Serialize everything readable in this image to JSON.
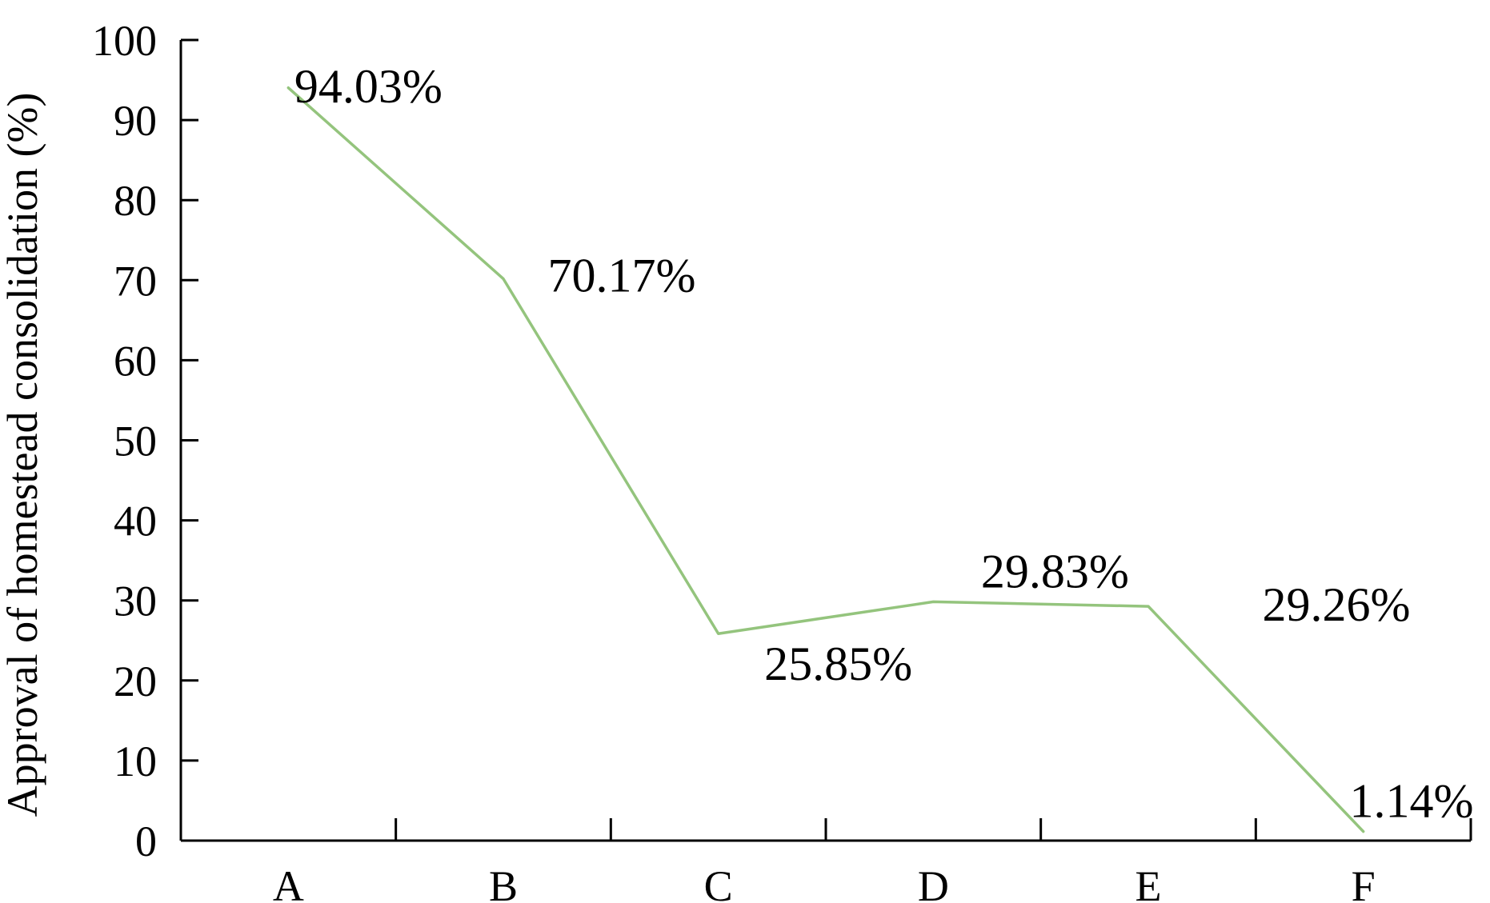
{
  "chart_data": {
    "type": "line",
    "categories": [
      "A",
      "B",
      "C",
      "D",
      "E",
      "F"
    ],
    "series": [
      {
        "values": [
          94.03,
          70.17,
          25.85,
          29.83,
          29.26,
          1.14
        ],
        "labels": [
          "94.03%",
          "70.17%",
          "25.85%",
          "29.83%",
          "29.26%",
          "1.14%"
        ],
        "color": "#94c47d"
      }
    ],
    "title": "",
    "xlabel": "",
    "ylabel": "Approval of homestead consolidation (%)",
    "ylim": [
      0,
      100
    ],
    "yticks": [
      0,
      10,
      20,
      30,
      40,
      50,
      60,
      70,
      80,
      90,
      100
    ],
    "grid": false,
    "legend": "none"
  }
}
